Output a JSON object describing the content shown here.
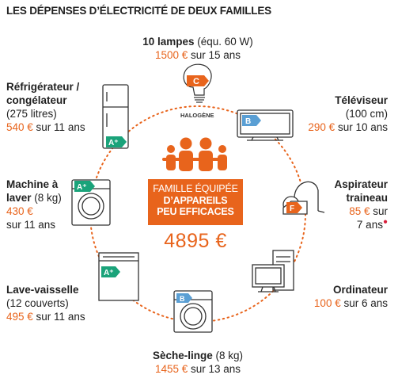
{
  "title": "LES DÉPENSES D’ÉLECTRICITÉ DE DEUX FAMILLES",
  "center": {
    "line1": "FAMILLE ÉQUIPÉE",
    "line2": "D’APPAREILS",
    "line3": "PEU EFFICACES",
    "total": "4895 €"
  },
  "appliances": {
    "lampes": {
      "name": "10 lampes",
      "detail": " (équ. 60 W)",
      "cost": "1500 €",
      "duration": " sur 15 ans",
      "energy_class": "C",
      "tag": "HALOGÈNE"
    },
    "televiseur": {
      "name": "Téléviseur",
      "detail": "(100 cm)",
      "cost": "290 €",
      "duration": " sur 10 ans",
      "energy_class": "B"
    },
    "aspirateur": {
      "name1": "Aspirateur",
      "name2": "traineau",
      "cost": "85 €",
      "duration1": " sur",
      "duration2": "7 ans",
      "energy_class": "F"
    },
    "ordinateur": {
      "name": "Ordinateur",
      "cost": "100 €",
      "duration": " sur 6 ans"
    },
    "seche_linge": {
      "name": "Sèche-linge",
      "detail": " (8 kg)",
      "cost": "1455 €",
      "duration": " sur 13 ans",
      "energy_class": "B"
    },
    "lave_vaisselle": {
      "name": "Lave-vaisselle",
      "detail": "(12 couverts)",
      "cost": "495 €",
      "duration": " sur 11 ans",
      "energy_class": "A⁺"
    },
    "machine_laver": {
      "name1": "Machine à",
      "name2": "laver",
      "detail": " (8 kg)",
      "cost": "430 €",
      "duration": "sur 11 ans",
      "energy_class": "A⁺"
    },
    "refrigerateur": {
      "name1": "Réfrigérateur /",
      "name2": "congélateur",
      "detail": "(275 litres)",
      "cost": "540 €",
      "duration": " sur 11 ans",
      "energy_class": "A⁺"
    }
  },
  "colors": {
    "accent": "#e8641c",
    "label_green": "#1aa37a",
    "label_blue": "#5a9fd4",
    "note_red": "#d81e3a"
  }
}
